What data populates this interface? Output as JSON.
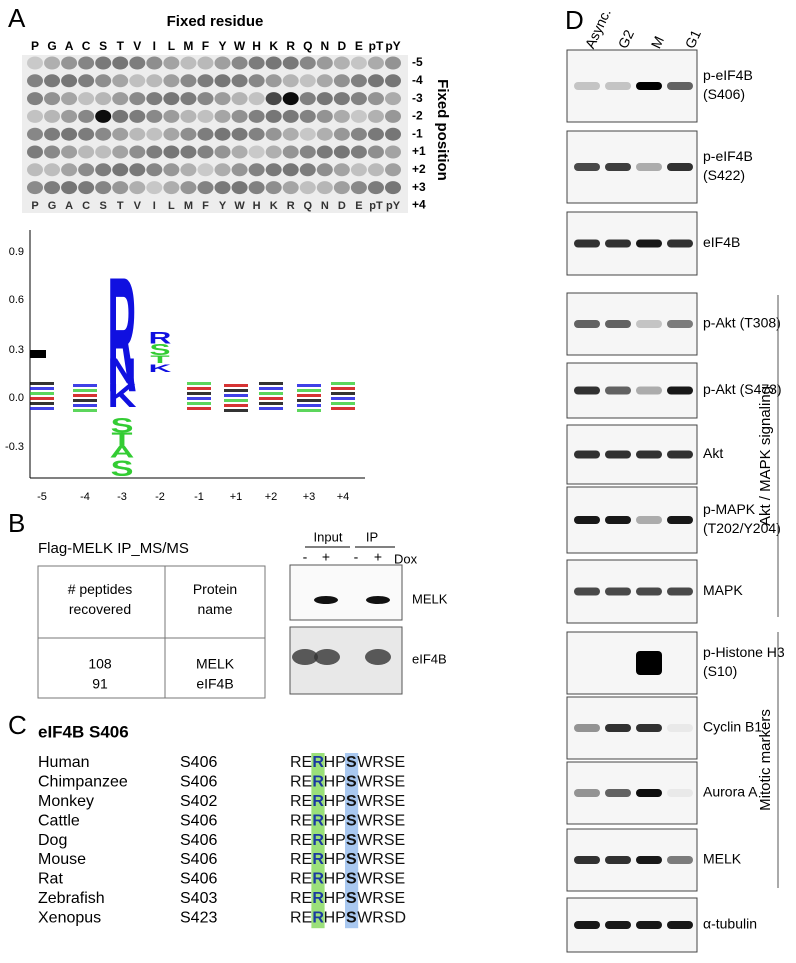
{
  "panel_a": {
    "label": "A",
    "array_title": "Fixed residue",
    "residues": [
      "P",
      "G",
      "A",
      "C",
      "S",
      "T",
      "V",
      "I",
      "L",
      "M",
      "F",
      "Y",
      "W",
      "H",
      "K",
      "R",
      "Q",
      "N",
      "D",
      "E",
      "pT",
      "pY"
    ],
    "positions": [
      "-5",
      "-4",
      "-3",
      "-2",
      "-1",
      "+1",
      "+2",
      "+3",
      "+4"
    ],
    "position_axis_label": "Fixed position",
    "logo": {
      "yticks": [
        "0.9",
        "0.6",
        "0.3",
        "0.0",
        "-0.3"
      ],
      "xticks": [
        "-5",
        "-4",
        "-3",
        "-2",
        "-1",
        "+1",
        "+2",
        "+3",
        "+4"
      ],
      "letters_up": [
        "R",
        "N",
        "K"
      ],
      "letters_up_2": [
        "R",
        "S",
        "T",
        "K"
      ],
      "letters_down": [
        "S",
        "T",
        "A",
        "S"
      ]
    }
  },
  "panel_b": {
    "label": "B",
    "title": "Flag-MELK IP_MS/MS",
    "table": {
      "header": [
        "# peptides recovered",
        "Protein name"
      ],
      "rows": [
        [
          "108",
          "MELK"
        ],
        [
          "91",
          "eIF4B"
        ]
      ]
    },
    "blot": {
      "groups": [
        "Input",
        "IP"
      ],
      "lanes": [
        "-",
        "+",
        "-",
        "+"
      ],
      "treatment": "Dox",
      "rows": [
        "MELK",
        "eIF4B"
      ]
    }
  },
  "panel_c": {
    "label": "C",
    "title": "eIF4B S406",
    "rows": [
      [
        "Human",
        "S406",
        [
          "RE",
          "R",
          "HP",
          "S",
          "WRSE"
        ]
      ],
      [
        "Chimpanzee",
        "S406",
        [
          "RE",
          "R",
          "HP",
          "S",
          "WRSE"
        ]
      ],
      [
        "Monkey",
        "S402",
        [
          "RE",
          "R",
          "HP",
          "S",
          "WRSE"
        ]
      ],
      [
        "Cattle",
        "S406",
        [
          "RE",
          "R",
          "HP",
          "S",
          "WRSE"
        ]
      ],
      [
        "Dog",
        "S406",
        [
          "RE",
          "R",
          "HP",
          "S",
          "WRSE"
        ]
      ],
      [
        "Mouse",
        "S406",
        [
          "RE",
          "R",
          "HP",
          "S",
          "WRSE"
        ]
      ],
      [
        "Rat",
        "S406",
        [
          "RE",
          "R",
          "HP",
          "S",
          "WRSE"
        ]
      ],
      [
        "Zebrafish",
        "S403",
        [
          "RE",
          "R",
          "HP",
          "S",
          "WRSE"
        ]
      ],
      [
        "Xenopus",
        "S423",
        [
          "RE",
          "R",
          "HP",
          "S",
          "WRSD"
        ]
      ]
    ]
  },
  "panel_d": {
    "label": "D",
    "lanes": [
      "Async.",
      "G2",
      "M",
      "G1"
    ],
    "blots": [
      [
        "p-eIF4B",
        "(S406)"
      ],
      [
        "p-eIF4B",
        "(S422)"
      ],
      [
        "eIF4B"
      ],
      [
        "p-Akt (T308)"
      ],
      [
        "p-Akt (S473)"
      ],
      [
        "Akt"
      ],
      [
        "p-MAPK",
        "(T202/Y204)"
      ],
      [
        "MAPK"
      ],
      [
        "p-Histone H3",
        "(S10)"
      ],
      [
        "Cyclin B1"
      ],
      [
        "Aurora A"
      ],
      [
        "MELK"
      ],
      [
        "α-tubulin"
      ]
    ],
    "groups": [
      "Akt / MAPK signaling",
      "Mitotic markers"
    ]
  }
}
